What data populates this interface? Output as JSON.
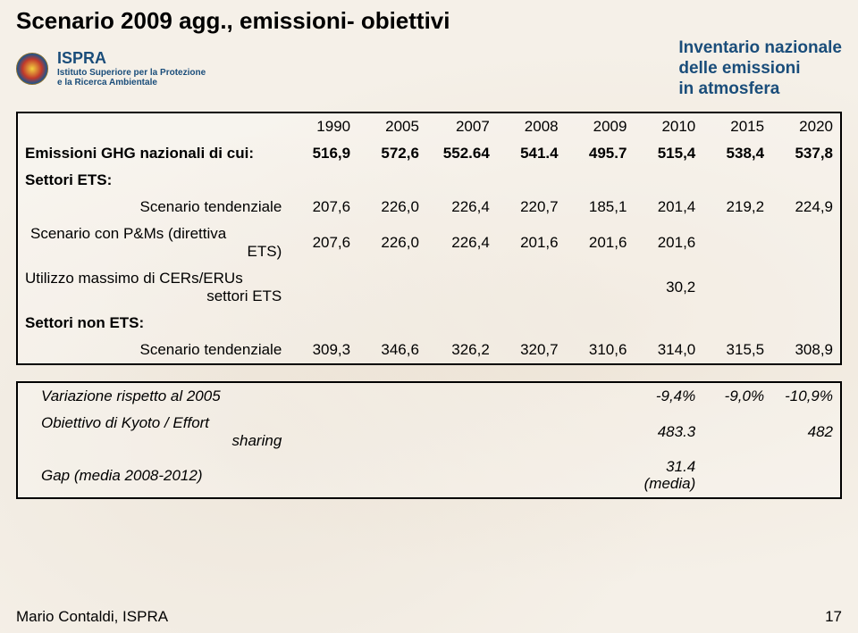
{
  "title": "Scenario 2009 agg., emissioni- obiettivi",
  "org": {
    "name": "ISPRA",
    "sub1": "Istituto Superiore per la Protezione",
    "sub2": "e la Ricerca Ambientale"
  },
  "inventory": {
    "l1": "Inventario nazionale",
    "l2": "delle emissioni",
    "l3": "in atmosfera"
  },
  "table1": {
    "years": [
      "1990",
      "2005",
      "2007",
      "2008",
      "2009",
      "2010",
      "2015",
      "2020"
    ],
    "rows": {
      "ghg_label": "Emissioni GHG nazionali di cui:",
      "ghg": [
        "516,9",
        "572,6",
        "552.64",
        "541.4",
        "495.7",
        "515,4",
        "538,4",
        "537,8"
      ],
      "settori_ets": "Settori ETS:",
      "scen_tend_label": "Scenario tendenziale",
      "scen_tend": [
        "207,6",
        "226,0",
        "226,4",
        "220,7",
        "185,1",
        "201,4",
        "219,2",
        "224,9"
      ],
      "scen_pms_label_l1": "Scenario con P&Ms (direttiva",
      "scen_pms_label_l2": "ETS)",
      "scen_pms": [
        "207,6",
        "226,0",
        "226,4",
        "201,6",
        "201,6",
        "201,6",
        "",
        ""
      ],
      "cers_label_l1": "Utilizzo massimo di CERs/ERUs",
      "cers_label_l2": "settori ETS",
      "cers": [
        "",
        "",
        "",
        "",
        "",
        "30,2",
        "",
        ""
      ],
      "settori_non_ets": "Settori non ETS:",
      "scen_tend2_label": "Scenario tendenziale",
      "scen_tend2": [
        "309,3",
        "346,6",
        "326,2",
        "320,7",
        "310,6",
        "314,0",
        "315,5",
        "308,9"
      ]
    }
  },
  "table2": {
    "var_label": "Variazione rispetto al 2005",
    "var": [
      "",
      "",
      "",
      "",
      "",
      "-9,4%",
      "-9,0%",
      "-10,9%"
    ],
    "kyoto_label_l1": "Obiettivo di Kyoto / Effort",
    "kyoto_label_l2": "sharing",
    "kyoto": [
      "",
      "",
      "",
      "",
      "",
      "483.3",
      "",
      "482"
    ],
    "gap_label": "Gap (media 2008-2012)",
    "gap_l1": "31.4",
    "gap_l2": "(media)"
  },
  "footer": {
    "author": "Mario Contaldi, ISPRA",
    "page": "17"
  }
}
